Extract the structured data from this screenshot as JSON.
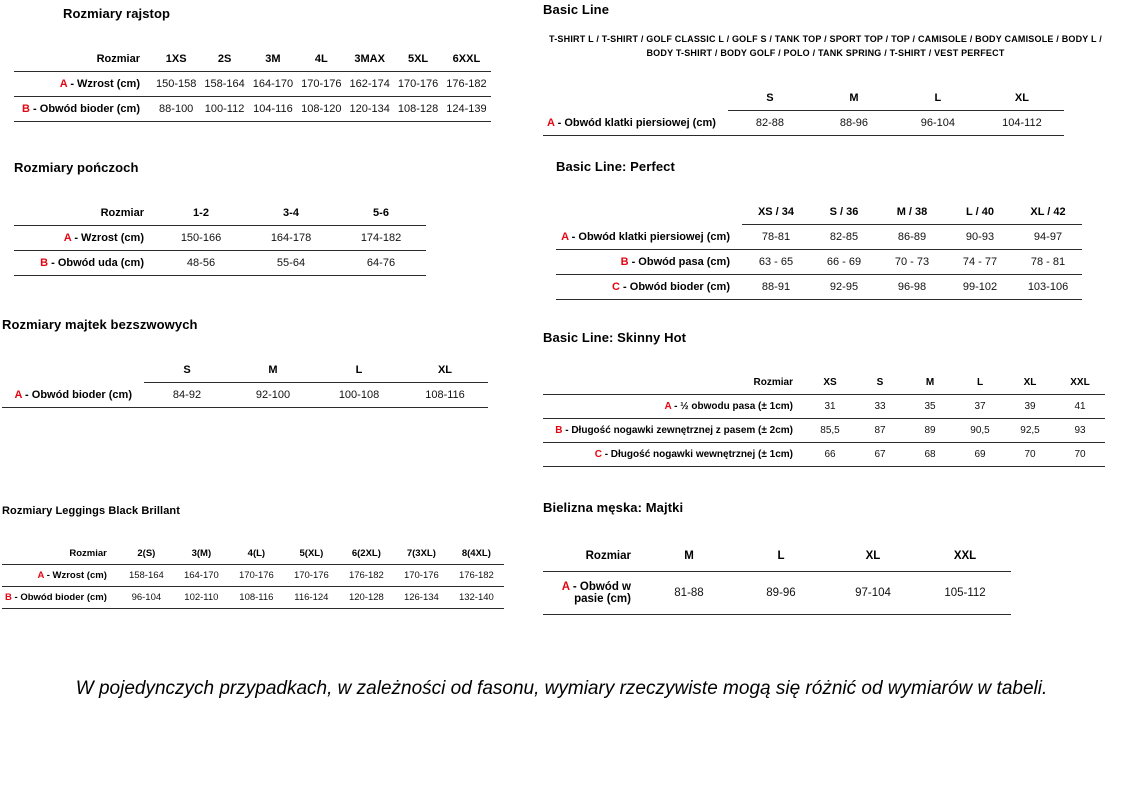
{
  "sections": [
    {
      "title": "Rozmiary rajstop",
      "table": {
        "header_label": "Rozmiar",
        "columns": [
          "1XS",
          "2S",
          "3M",
          "4L",
          "3MAX",
          "5XL",
          "6XXL"
        ],
        "rows": [
          {
            "prefix": "A",
            "label": "Wzrost (cm)",
            "values": [
              "150-158",
              "158-164",
              "164-170",
              "170-176",
              "162-174",
              "170-176",
              "176-182"
            ]
          },
          {
            "prefix": "B",
            "label": "Obwód bioder (cm)",
            "values": [
              "88-100",
              "100-112",
              "104-116",
              "108-120",
              "120-134",
              "108-128",
              "124-139"
            ]
          }
        ]
      }
    },
    {
      "title": "Rozmiary pończoch",
      "table": {
        "header_label": "Rozmiar",
        "columns": [
          "1-2",
          "3-4",
          "5-6"
        ],
        "rows": [
          {
            "prefix": "A",
            "label": "Wzrost (cm)",
            "values": [
              "150-166",
              "164-178",
              "174-182"
            ]
          },
          {
            "prefix": "B",
            "label": "Obwód uda (cm)",
            "values": [
              "48-56",
              "55-64",
              "64-76"
            ]
          }
        ]
      }
    },
    {
      "title": "Rozmiary majtek bezszwowych",
      "table": {
        "header_label": "",
        "columns": [
          "S",
          "M",
          "L",
          "XL"
        ],
        "rows": [
          {
            "prefix": "A",
            "label": "Obwód bioder (cm)",
            "values": [
              "84-92",
              "92-100",
              "100-108",
              "108-116"
            ]
          }
        ]
      }
    },
    {
      "title": "Rozmiary Leggings Black Brillant",
      "table": {
        "header_label": "Rozmiar",
        "columns": [
          "2(S)",
          "3(M)",
          "4(L)",
          "5(XL)",
          "6(2XL)",
          "7(3XL)",
          "8(4XL)"
        ],
        "rows": [
          {
            "prefix": "A",
            "label": "Wzrost (cm)",
            "values": [
              "158-164",
              "164-170",
              "170-176",
              "170-176",
              "176-182",
              "170-176",
              "176-182"
            ]
          },
          {
            "prefix": "B",
            "label": "Obwód bioder (cm)",
            "values": [
              "96-104",
              "102-110",
              "108-116",
              "116-124",
              "120-128",
              "126-134",
              "132-140"
            ]
          }
        ]
      }
    },
    {
      "title": "Basic Line",
      "subtitle": "T-SHIRT L / T-SHIRT / GOLF CLASSIC L / GOLF S / TANK TOP / SPORT TOP / TOP / CAMISOLE / BODY CAMISOLE / BODY L / BODY T-SHIRT / BODY GOLF / POLO / TANK SPRING / T-SHIRT / VEST PERFECT",
      "table": {
        "header_label": "",
        "columns": [
          "S",
          "M",
          "L",
          "XL"
        ],
        "rows": [
          {
            "prefix": "A",
            "label": "Obwód klatki piersiowej (cm)",
            "values": [
              "82-88",
              "88-96",
              "96-104",
              "104-112"
            ]
          }
        ]
      }
    },
    {
      "title": "Basic Line: Perfect",
      "table": {
        "header_label": "",
        "columns": [
          "XS / 34",
          "S / 36",
          "M / 38",
          "L / 40",
          "XL / 42"
        ],
        "rows": [
          {
            "prefix": "A",
            "label": "Obwód klatki piersiowej (cm)",
            "values": [
              "78-81",
              "82-85",
              "86-89",
              "90-93",
              "94-97"
            ]
          },
          {
            "prefix": "B",
            "label": "Obwód pasa (cm)",
            "values": [
              "63 - 65",
              "66 - 69",
              "70 - 73",
              "74 - 77",
              "78 - 81"
            ]
          },
          {
            "prefix": "C",
            "label": "Obwód bioder (cm)",
            "values": [
              "88-91",
              "92-95",
              "96-98",
              "99-102",
              "103-106"
            ]
          }
        ]
      }
    },
    {
      "title": "Basic Line: Skinny Hot",
      "table": {
        "header_label": "Rozmiar",
        "columns": [
          "XS",
          "S",
          "M",
          "L",
          "XL",
          "XXL"
        ],
        "rows": [
          {
            "prefix": "A",
            "label": "½ obwodu pasa (± 1cm)",
            "values": [
              "31",
              "33",
              "35",
              "37",
              "39",
              "41"
            ]
          },
          {
            "prefix": "B",
            "label": "Długość nogawki zewnętrznej z pasem (± 2cm)",
            "values": [
              "85,5",
              "87",
              "89",
              "90,5",
              "92,5",
              "93"
            ]
          },
          {
            "prefix": "C",
            "label": "Długość nogawki wewnętrznej (± 1cm)",
            "values": [
              "66",
              "67",
              "68",
              "69",
              "70",
              "70"
            ]
          }
        ]
      }
    },
    {
      "title": "Bielizna męska: Majtki",
      "table": {
        "header_label": "Rozmiar",
        "columns": [
          "M",
          "L",
          "XL",
          "XXL"
        ],
        "rows": [
          {
            "prefix": "A",
            "label": "Obwód w pasie (cm)",
            "values": [
              "81-88",
              "89-96",
              "97-104",
              "105-112"
            ]
          }
        ]
      }
    }
  ],
  "footer": {
    "note": "W pojedynczych przypadkach, w zależności od fasonu, wymiary rzeczywiste mogą się różnić od wymiarów w tabeli."
  }
}
